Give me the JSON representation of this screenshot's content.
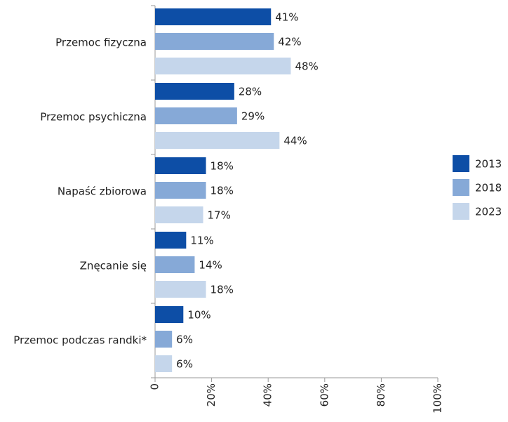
{
  "chart_data": {
    "type": "hbar",
    "categories": [
      "Przemoc fizyczna",
      "Przemoc psychiczna",
      "Napaść zbiorowa",
      "Znęcanie się",
      "Przemoc podczas randki*"
    ],
    "series": [
      {
        "name": "2013",
        "color": "#0d4ea6",
        "values": [
          41,
          28,
          18,
          11,
          10
        ],
        "value_labels": [
          "41%",
          "28%",
          "18%",
          "11%",
          "10%"
        ]
      },
      {
        "name": "2018",
        "color": "#86a9d7",
        "values": [
          42,
          29,
          18,
          14,
          6
        ],
        "value_labels": [
          "42%",
          "29%",
          "18%",
          "14%",
          "6%"
        ]
      },
      {
        "name": "2023",
        "color": "#c5d6eb",
        "values": [
          48,
          44,
          17,
          18,
          6
        ],
        "value_labels": [
          "48%",
          "44%",
          "17%",
          "18%",
          "6%"
        ]
      }
    ],
    "xlim": [
      0,
      100
    ],
    "xticks": [
      0,
      {
        "value": 20,
        "label": "20%"
      },
      {
        "value": 40,
        "label": "40%"
      },
      {
        "value": 60,
        "label": "60%"
      },
      {
        "value": 80,
        "label": "80%"
      },
      {
        "value": 100,
        "label": "100%"
      }
    ],
    "legend": "right"
  }
}
